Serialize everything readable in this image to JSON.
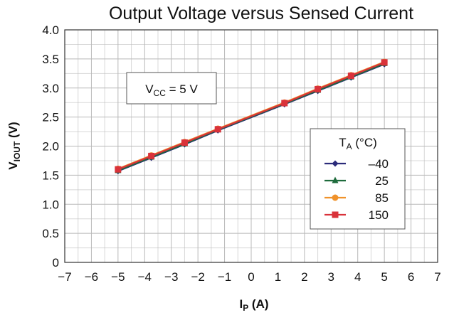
{
  "chart_data": {
    "type": "line",
    "title": "Output Voltage versus Sensed Current",
    "xlabel": {
      "main": "I",
      "sub": "P",
      "rest": " (A)"
    },
    "ylabel": {
      "main": "V",
      "sub": "IOUT",
      "rest": " (V)"
    },
    "xlim": [
      -7,
      7
    ],
    "ylim": [
      0,
      4.0
    ],
    "x_ticks": [
      "−7",
      "−6",
      "−5",
      "−4",
      "−3",
      "−2",
      "−1",
      "0",
      "1",
      "2",
      "3",
      "4",
      "5",
      "6",
      "7"
    ],
    "y_ticks": [
      "0",
      "0.5",
      "1.0",
      "1.5",
      "2.0",
      "2.5",
      "3.0",
      "3.5",
      "4.0"
    ],
    "grid": true,
    "annotation": {
      "main": "V",
      "sub": "CC",
      "rest": " = 5 V"
    },
    "legend": {
      "title_main": "T",
      "title_sub": "A",
      "title_rest": " (°C)",
      "placement": "right"
    },
    "series": [
      {
        "name": "–40",
        "color": "#2b2b7a",
        "marker": "diamond",
        "x": [
          -5,
          -3.75,
          -2.5,
          -1.25,
          1.25,
          2.5,
          3.75,
          5
        ],
        "y": [
          1.57,
          1.8,
          2.03,
          2.27,
          2.72,
          2.95,
          3.18,
          3.41
        ]
      },
      {
        "name": "25",
        "color": "#1e6b3c",
        "marker": "triangle",
        "x": [
          -5,
          -3.75,
          -2.5,
          -1.25,
          1.25,
          2.5,
          3.75,
          5
        ],
        "y": [
          1.58,
          1.81,
          2.04,
          2.28,
          2.73,
          2.96,
          3.19,
          3.42
        ]
      },
      {
        "name": "85",
        "color": "#f0922b",
        "marker": "circle",
        "x": [
          -5,
          -3.75,
          -2.5,
          -1.25,
          1.25,
          2.5,
          3.75,
          5
        ],
        "y": [
          1.61,
          1.84,
          2.07,
          2.3,
          2.75,
          2.99,
          3.22,
          3.45
        ]
      },
      {
        "name": "150",
        "color": "#d9323a",
        "marker": "square",
        "x": [
          -5,
          -3.75,
          -2.5,
          -1.25,
          1.25,
          2.5,
          3.75,
          5
        ],
        "y": [
          1.6,
          1.83,
          2.06,
          2.29,
          2.74,
          2.98,
          3.21,
          3.44
        ]
      }
    ]
  }
}
